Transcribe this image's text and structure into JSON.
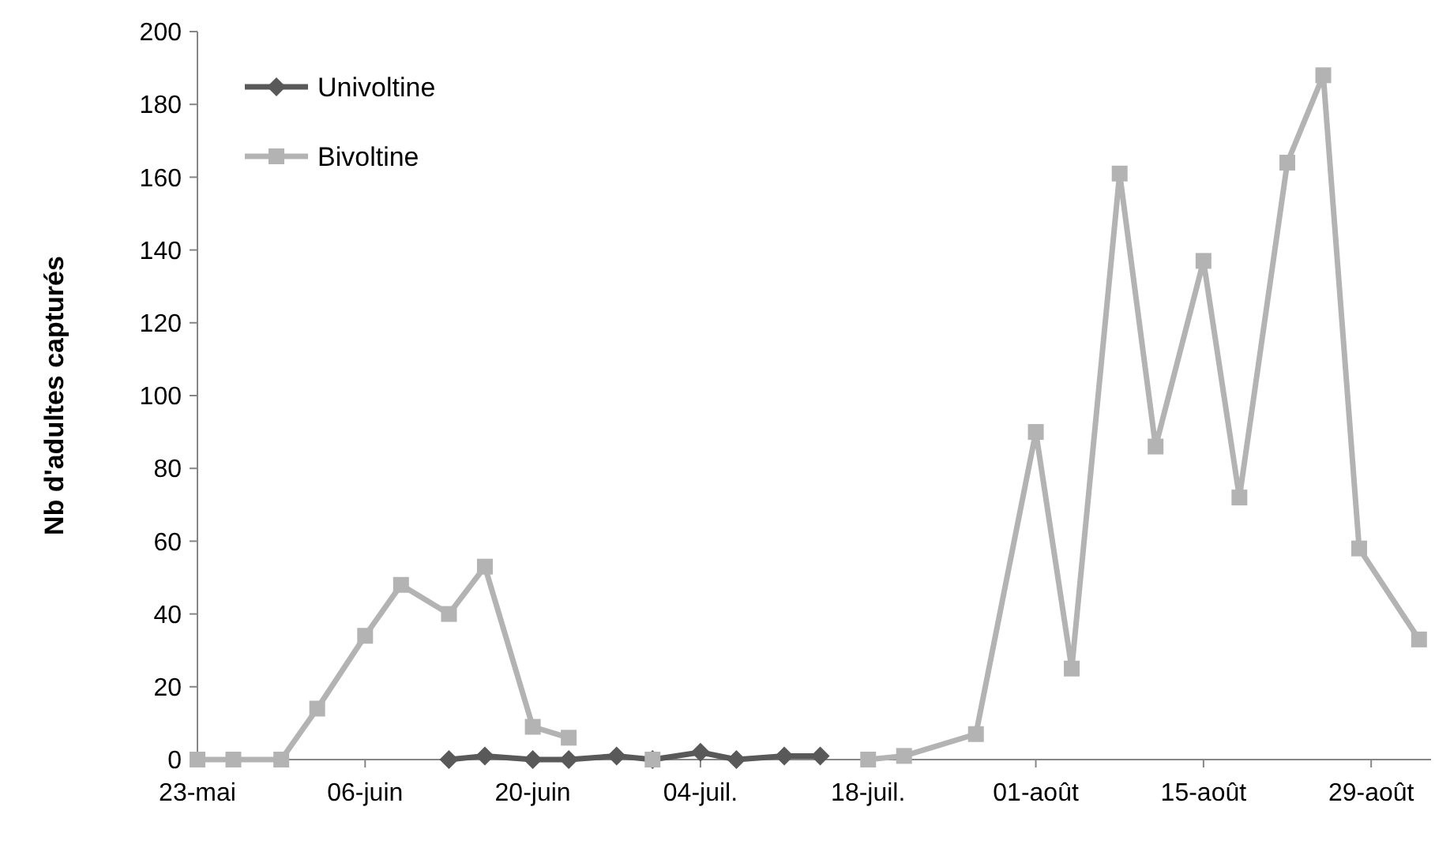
{
  "chart_data": {
    "type": "line",
    "ylabel": "Nb d'adultes capturés",
    "legend": "top left",
    "grid": false,
    "xlim": [
      "--05-23",
      "--09-03"
    ],
    "ylim": [
      0,
      200
    ],
    "yticks": [
      0,
      20,
      40,
      60,
      80,
      100,
      120,
      140,
      160,
      180,
      200
    ],
    "xticks": [
      {
        "value": "--05-23",
        "label": "23-mai"
      },
      {
        "value": "--06-06",
        "label": "06-juin"
      },
      {
        "value": "--06-20",
        "label": "20-juin"
      },
      {
        "value": "--07-04",
        "label": "04-juil."
      },
      {
        "value": "--07-18",
        "label": "18-juil."
      },
      {
        "value": "--08-01",
        "label": "01-août"
      },
      {
        "value": "--08-15",
        "label": "15-août"
      },
      {
        "value": "--08-29",
        "label": "29-août"
      }
    ],
    "series": [
      {
        "name": "Univoltine",
        "color": "#595959",
        "marker": "diamond",
        "x": [
          "--06-13",
          "--06-16",
          "--06-20",
          "--06-23",
          "--06-27",
          "--06-30",
          "--07-04",
          "--07-07",
          "--07-11",
          "--07-14"
        ],
        "values": [
          0,
          1,
          0,
          0,
          1,
          0,
          2,
          0,
          1,
          1
        ]
      },
      {
        "name": "Bivoltine",
        "color": "#b3b3b3",
        "marker": "square",
        "x": [
          "--05-23",
          "--05-26",
          "--05-30",
          "--06-02",
          "--06-06",
          "--06-09",
          "--06-13",
          "--06-16",
          "--06-20",
          "--06-23",
          "--06-27",
          "--06-30",
          "--07-04",
          "--07-18",
          "--07-21",
          "--07-27",
          "--08-01",
          "--08-04",
          "--08-08",
          "--08-11",
          "--08-15",
          "--08-18",
          "--08-22",
          "--08-25",
          "--08-28",
          "--09-02"
        ],
        "values": [
          0,
          0,
          0,
          14,
          34,
          48,
          40,
          53,
          9,
          6,
          null,
          0,
          null,
          0,
          1,
          7,
          90,
          25,
          161,
          86,
          137,
          72,
          164,
          188,
          58,
          33
        ]
      }
    ]
  }
}
